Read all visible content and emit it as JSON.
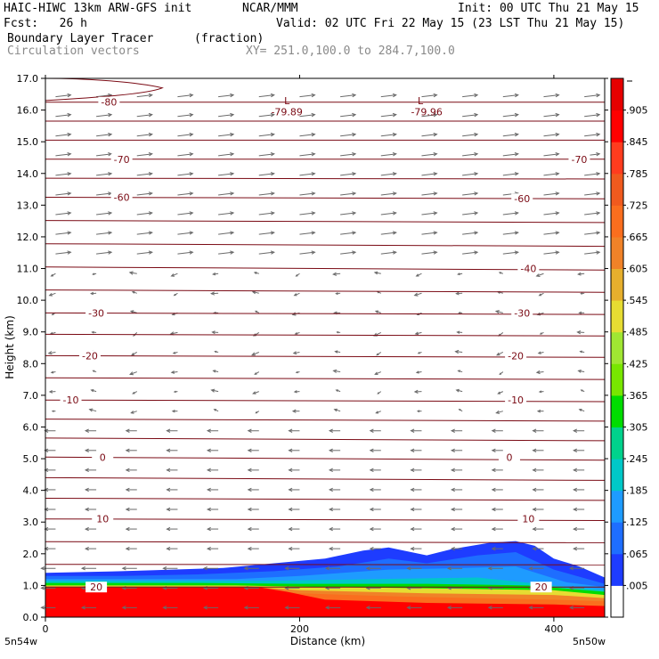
{
  "header": {
    "model": "HAIC-HIWC 13km ARW-GFS init",
    "org": "NCAR/MMM",
    "init": "Init: 00 UTC Thu 21 May 15",
    "fcst": "Fcst:   26 h",
    "valid": "Valid: 02 UTC Fri 22 May 15 (23 LST Thu 21 May 15)",
    "field": "Boundary Layer Tracer",
    "field_units": "(fraction)",
    "vectors": "Circulation vectors",
    "xy": "XY= 251.0,100.0 to 284.7,100.0"
  },
  "chart_data": {
    "type": "heatmap",
    "xlabel": "Distance (km)",
    "ylabel": "Height (km)",
    "xlim": [
      0,
      440
    ],
    "ylim": [
      0,
      17
    ],
    "x_ticks": [
      "0",
      "200",
      "400"
    ],
    "x_tick_values": [
      0,
      200,
      400
    ],
    "x_end_labels": [
      "5n54w",
      "5n50w"
    ],
    "y_ticks": [
      "0.0",
      "1.0",
      "2.0",
      "3.0",
      "4.0",
      "5.0",
      "6.0",
      "7.0",
      "8.0",
      "9.0",
      "10.0",
      "11.0",
      "12.0",
      "13.0",
      "14.0",
      "15.0",
      "16.0",
      "17.0"
    ],
    "colorbar": {
      "labels": [
        ".005",
        ".065",
        ".125",
        ".185",
        ".245",
        ".305",
        ".365",
        ".425",
        ".485",
        ".545",
        ".605",
        ".665",
        ".725",
        ".785",
        ".845",
        ".905"
      ],
      "colors": [
        "#ffffff",
        "#1e3cff",
        "#1e6eff",
        "#1e9bff",
        "#00c8c8",
        "#00d28c",
        "#00dc00",
        "#78e600",
        "#a0e632",
        "#e6dc32",
        "#e6af2d",
        "#f08228",
        "#fa6e1e",
        "#f05a1e",
        "#ff3c1e",
        "#ff0000",
        "#e60000"
      ]
    },
    "tracer_fill_levels": [
      {
        "level": 0.005,
        "color": "#1e3cff",
        "top": [
          [
            0,
            1.4
          ],
          [
            60,
            1.45
          ],
          [
            100,
            1.5
          ],
          [
            140,
            1.55
          ],
          [
            180,
            1.7
          ],
          [
            220,
            1.85
          ],
          [
            250,
            2.1
          ],
          [
            270,
            2.2
          ],
          [
            300,
            1.95
          ],
          [
            320,
            2.15
          ],
          [
            350,
            2.35
          ],
          [
            370,
            2.4
          ],
          [
            385,
            2.25
          ],
          [
            400,
            1.85
          ],
          [
            420,
            1.6
          ],
          [
            440,
            1.25
          ]
        ]
      },
      {
        "level": 0.065,
        "color": "#1e6eff",
        "top": [
          [
            0,
            1.3
          ],
          [
            60,
            1.3
          ],
          [
            120,
            1.35
          ],
          [
            180,
            1.45
          ],
          [
            230,
            1.6
          ],
          [
            270,
            1.85
          ],
          [
            300,
            1.7
          ],
          [
            340,
            1.95
          ],
          [
            370,
            2.05
          ],
          [
            400,
            1.5
          ],
          [
            440,
            1.05
          ]
        ]
      },
      {
        "level": 0.185,
        "color": "#1e9bff",
        "top": [
          [
            0,
            1.2
          ],
          [
            80,
            1.2
          ],
          [
            150,
            1.2
          ],
          [
            200,
            1.3
          ],
          [
            270,
            1.5
          ],
          [
            330,
            1.55
          ],
          [
            370,
            1.6
          ],
          [
            410,
            1.1
          ],
          [
            440,
            0.95
          ]
        ]
      },
      {
        "level": 0.305,
        "color": "#00c8c8",
        "top": [
          [
            0,
            1.15
          ],
          [
            100,
            1.15
          ],
          [
            180,
            1.15
          ],
          [
            260,
            1.2
          ],
          [
            340,
            1.25
          ],
          [
            400,
            1.0
          ],
          [
            440,
            0.85
          ]
        ]
      },
      {
        "level": 0.425,
        "color": "#00dc00",
        "top": [
          [
            0,
            1.08
          ],
          [
            120,
            1.08
          ],
          [
            200,
            1.05
          ],
          [
            300,
            1.05
          ],
          [
            380,
            1.0
          ],
          [
            440,
            0.8
          ]
        ]
      },
      {
        "level": 0.545,
        "color": "#e6dc32",
        "top": [
          [
            0,
            1.0
          ],
          [
            150,
            1.0
          ],
          [
            220,
            0.95
          ],
          [
            320,
            0.9
          ],
          [
            400,
            0.85
          ],
          [
            440,
            0.7
          ]
        ]
      },
      {
        "level": 0.665,
        "color": "#f08228",
        "top": [
          [
            0,
            0.97
          ],
          [
            160,
            0.97
          ],
          [
            200,
            0.85
          ],
          [
            300,
            0.75
          ],
          [
            400,
            0.7
          ],
          [
            440,
            0.6
          ]
        ]
      },
      {
        "level": 0.785,
        "color": "#fa6e1e",
        "top": [
          [
            0,
            0.95
          ],
          [
            160,
            0.95
          ],
          [
            200,
            0.75
          ],
          [
            280,
            0.65
          ],
          [
            400,
            0.55
          ],
          [
            440,
            0.5
          ]
        ]
      },
      {
        "level": 0.905,
        "color": "#ff0000",
        "top": [
          [
            0,
            0.93
          ],
          [
            170,
            0.93
          ],
          [
            190,
            0.8
          ],
          [
            220,
            0.55
          ],
          [
            300,
            0.45
          ],
          [
            400,
            0.4
          ],
          [
            440,
            0.35
          ]
        ]
      }
    ],
    "temperature_isotherms": [
      {
        "value": 20,
        "label": "20",
        "label_positions": [
          [
            40,
            0.95
          ],
          [
            390,
            0.95
          ]
        ],
        "y_left": 0.95,
        "y_right": 0.95
      },
      {
        "value": 10,
        "label": "10",
        "label_positions": [
          [
            45,
            3.1
          ],
          [
            380,
            3.1
          ]
        ],
        "y_left": 3.1,
        "y_right": 3.05
      },
      {
        "value": 0,
        "label": "0",
        "label_positions": [
          [
            45,
            5.05
          ],
          [
            365,
            5.05
          ]
        ],
        "y_left": 5.05,
        "y_right": 4.95
      },
      {
        "value": -10,
        "label": "-10",
        "label_positions": [
          [
            20,
            6.85
          ],
          [
            370,
            6.85
          ]
        ],
        "y_left": 6.85,
        "y_right": 6.8
      },
      {
        "value": -20,
        "label": "-20",
        "label_positions": [
          [
            35,
            8.25
          ],
          [
            370,
            8.25
          ]
        ],
        "y_left": 8.25,
        "y_right": 8.2
      },
      {
        "value": -30,
        "label": "-30",
        "label_positions": [
          [
            40,
            9.6
          ],
          [
            375,
            9.6
          ]
        ],
        "y_left": 9.6,
        "y_right": 9.55
      },
      {
        "value": -40,
        "label": "-40",
        "label_positions": [
          [
            380,
            11.0
          ]
        ],
        "y_left": 11.05,
        "y_right": 10.95
      },
      {
        "value": -60,
        "label": "-60",
        "label_positions": [
          [
            60,
            13.25
          ],
          [
            375,
            13.2
          ]
        ],
        "y_left": 13.25,
        "y_right": 13.2
      },
      {
        "value": -70,
        "label": "-70",
        "label_positions": [
          [
            60,
            14.45
          ],
          [
            420,
            14.45
          ]
        ],
        "y_left": 14.45,
        "y_right": 14.45
      },
      {
        "value": -80,
        "label": "-80",
        "label_positions": [
          [
            50,
            16.25
          ]
        ],
        "y_left": 16.25,
        "y_right": 16.25
      }
    ],
    "minimum_labels": [
      {
        "text": "L",
        "x": 190,
        "y": 16.3
      },
      {
        "text": "-79.89",
        "x": 190,
        "y": 15.95
      },
      {
        "text": "L",
        "x": 295,
        "y": 16.3
      },
      {
        "text": "-79.96",
        "x": 300,
        "y": 15.95
      }
    ]
  }
}
